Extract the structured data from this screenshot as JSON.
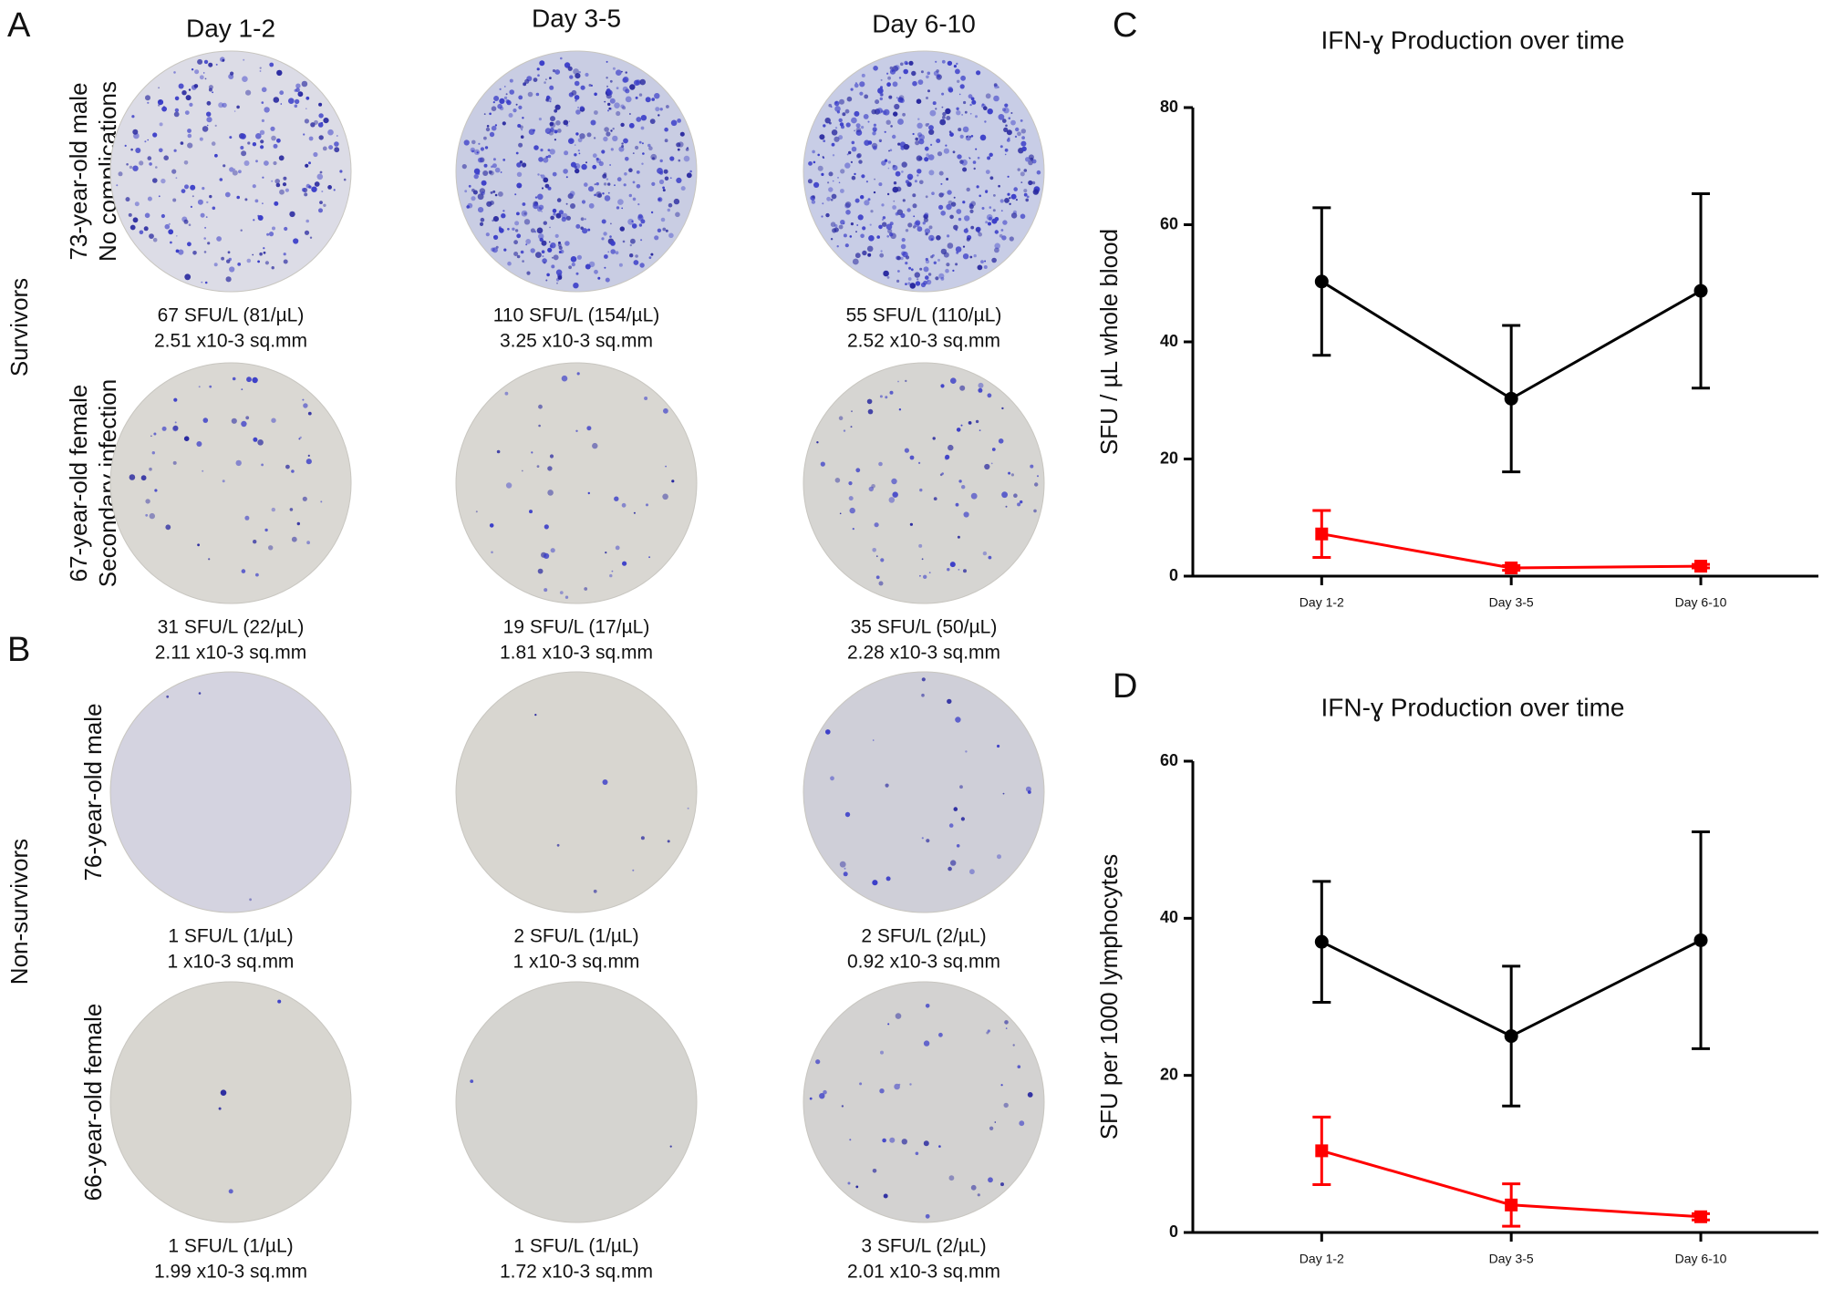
{
  "panel_labels": [
    "A",
    "B",
    "C",
    "D"
  ],
  "wells": {
    "columns": [
      "Day 1-2",
      "Day 3-5",
      "Day 6-10"
    ],
    "groups": [
      {
        "label": "Survivors",
        "rows": [
          {
            "label": [
              "73-year-old male",
              "No complications"
            ],
            "cells": [
              [
                "67 SFU/L (81/µL)",
                "2.51 x10-3 sq.mm"
              ],
              [
                "110 SFU/L (154/µL)",
                "3.25 x10-3 sq.mm"
              ],
              [
                "55 SFU/L (110/µL)",
                "2.52 x10-3 sq.mm"
              ]
            ]
          },
          {
            "label": [
              "67-year-old female",
              "Secondary infection"
            ],
            "cells": [
              [
                "31 SFU/L (22/µL)",
                "2.11 x10-3 sq.mm"
              ],
              [
                "19 SFU/L (17/µL)",
                "1.81 x10-3 sq.mm"
              ],
              [
                "35 SFU/L (50/µL)",
                "2.28 x10-3 sq.mm"
              ]
            ]
          }
        ]
      },
      {
        "label": "Non-survivors",
        "rows": [
          {
            "label": [
              "76-year-old male"
            ],
            "cells": [
              [
                "1 SFU/L (1/µL)",
                "1 x10-3 sq.mm"
              ],
              [
                "2 SFU/L (1/µL)",
                "1 x10-3 sq.mm"
              ],
              [
                "2 SFU/L (2/µL)",
                "0.92 x10-3 sq.mm"
              ]
            ]
          },
          {
            "label": [
              "66-year-old female"
            ],
            "cells": [
              [
                "1 SFU/L (1/µL)",
                "1.99 x10-3 sq.mm"
              ],
              [
                "1 SFU/L (1/µL)",
                "1.72 x10-3 sq.mm"
              ],
              [
                "3 SFU/L (2/µL)",
                "2.01 x10-3 sq.mm"
              ]
            ]
          }
        ]
      }
    ]
  },
  "chart_data": [
    {
      "type": "line",
      "title": "IFN-ɣ Production over time",
      "y_label": "SFU / µL whole blood",
      "categories": [
        "Day 1-2",
        "Day 3-5",
        "Day 6-10"
      ],
      "ylim": [
        0,
        80
      ],
      "yticks": [
        0,
        20,
        40,
        60,
        80
      ],
      "series": [
        {
          "color": "#000000",
          "marker": "circle",
          "values": [
            50.3,
            30.3,
            48.7
          ],
          "errors": [
            12.6,
            12.5,
            16.6
          ]
        },
        {
          "color": "#ff0000",
          "marker": "square",
          "values": [
            7.2,
            1.4,
            1.7
          ],
          "errors": [
            4,
            0.4,
            0.3
          ]
        }
      ]
    },
    {
      "type": "line",
      "title": "IFN-ɣ Production over time",
      "y_label": "SFU per 1000 lymphocytes",
      "categories": [
        "Day 1-2",
        "Day 3-5",
        "Day 6-10"
      ],
      "ylim": [
        0,
        60
      ],
      "yticks": [
        0,
        20,
        40,
        60
      ],
      "series": [
        {
          "color": "#000000",
          "marker": "circle",
          "values": [
            37,
            25,
            37.2
          ],
          "errors": [
            7.7,
            8.9,
            13.8
          ]
        },
        {
          "color": "#ff0000",
          "marker": "square",
          "values": [
            10.4,
            3.5,
            2
          ],
          "errors": [
            4.3,
            2.7,
            0.4
          ]
        }
      ]
    }
  ]
}
